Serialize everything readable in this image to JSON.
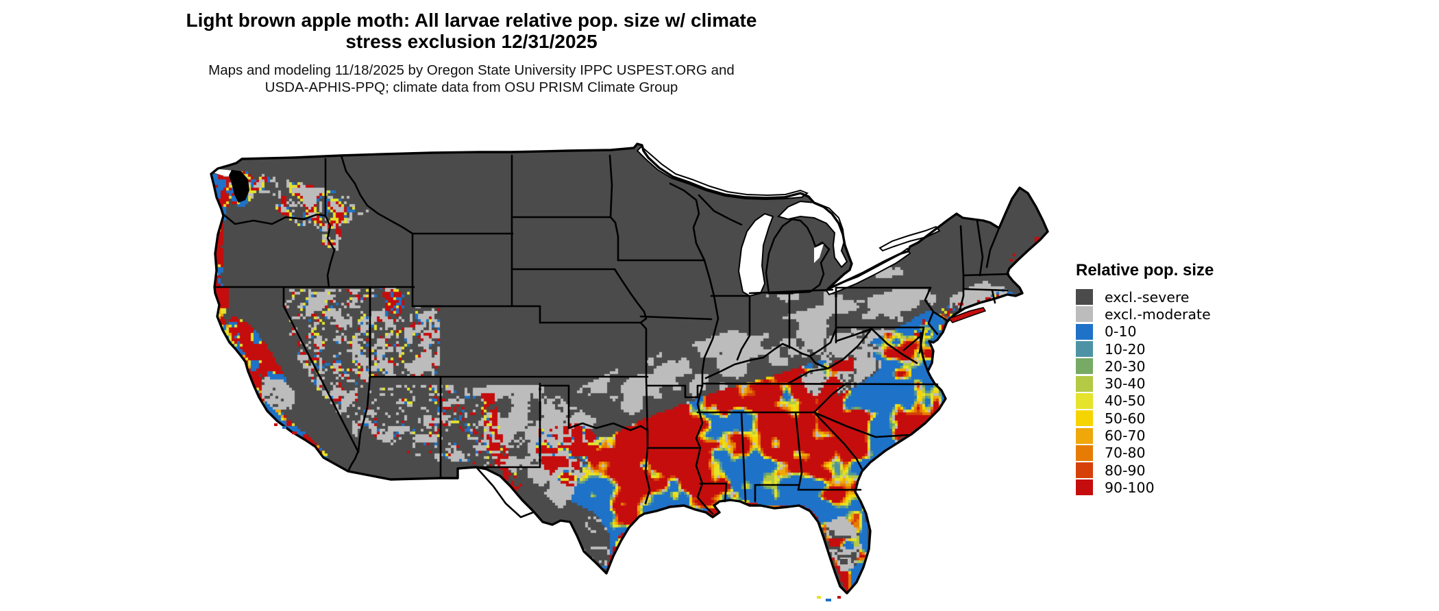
{
  "title": {
    "line1": "Light brown apple moth: All larvae relative pop. size w/ climate",
    "line2": "stress exclusion 12/31/2025"
  },
  "subtitle": {
    "line1": "Maps and modeling 11/18/2025 by Oregon State University IPPC USPEST.ORG and",
    "line2": "USDA-APHIS-PPQ; climate data from OSU PRISM Climate Group"
  },
  "legend": {
    "title": "Relative pop. size",
    "items": [
      {
        "label": "excl.-severe",
        "color": "#4b4b4b"
      },
      {
        "label": "excl.-moderate",
        "color": "#bcbcbc"
      },
      {
        "label": "0-10",
        "color": "#1e72c8"
      },
      {
        "label": "10-20",
        "color": "#4d93a5"
      },
      {
        "label": "20-30",
        "color": "#76aa65"
      },
      {
        "label": "30-40",
        "color": "#b4c944"
      },
      {
        "label": "40-50",
        "color": "#e5e32b"
      },
      {
        "label": "50-60",
        "color": "#f6d402"
      },
      {
        "label": "60-70",
        "color": "#f0a70a"
      },
      {
        "label": "70-80",
        "color": "#e67c04"
      },
      {
        "label": "80-90",
        "color": "#d54108"
      },
      {
        "label": "90-100",
        "color": "#c50d0d"
      }
    ]
  },
  "map_description": {
    "region": "Continental United States",
    "kind": "raster suitability map",
    "water_color": "#ffffff",
    "boundary_color": "#000000",
    "dominant_classes": {
      "north_and_interior_west": "excl.-severe",
      "midwest_transition": "excl.-moderate",
      "south_and_coasts": "mixed 0-100 relative population colors"
    }
  },
  "colors": {
    "background": "#ffffff",
    "sev": "#4b4b4b",
    "mod": "#bcbcbc",
    "c0": "#1e72c8",
    "c10": "#4d93a5",
    "c20": "#76aa65",
    "c30": "#b4c944",
    "c40": "#e5e32b",
    "c50": "#f6d402",
    "c60": "#f0a70a",
    "c70": "#e67c04",
    "c80": "#d54108",
    "c90": "#c50d0d"
  }
}
